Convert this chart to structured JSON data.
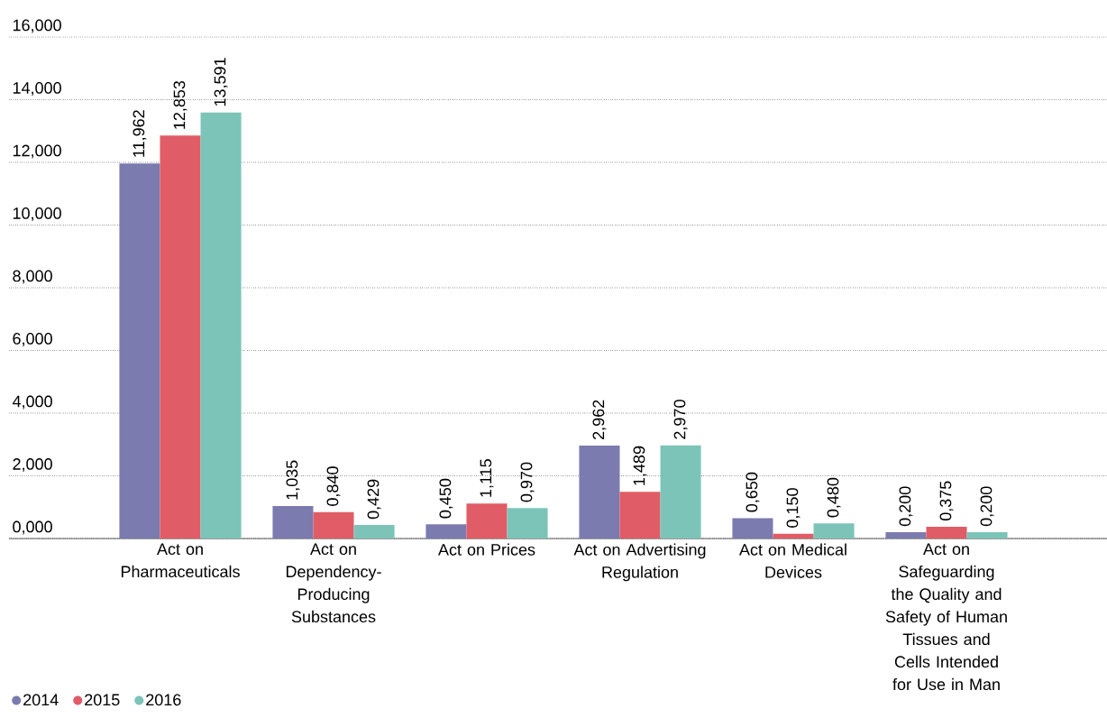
{
  "chart_data": {
    "type": "bar",
    "categories": [
      "Act on Pharmaceuticals",
      "Act on Dependency-Producing Substances",
      "Act on Prices",
      "Act on Advertising Regulation",
      "Act on Medical Devices",
      "Act on Safeguarding the Quality and Safety of Human Tissues and Cells Intended for Use in Man"
    ],
    "series": [
      {
        "name": "2014",
        "color": "#7b7bb0",
        "values": [
          11.962,
          1.035,
          0.45,
          2.962,
          0.65,
          0.2
        ],
        "value_labels": [
          "11,962",
          "1,035",
          "0,450",
          "2,962",
          "0,650",
          "0,200"
        ]
      },
      {
        "name": "2015",
        "color": "#e05c66",
        "values": [
          12.853,
          0.84,
          1.115,
          1.489,
          0.15,
          0.375
        ],
        "value_labels": [
          "12,853",
          "0,840",
          "1,115",
          "1,489",
          "0,150",
          "0,375"
        ]
      },
      {
        "name": "2016",
        "color": "#7cc4b8",
        "values": [
          13.591,
          0.429,
          0.97,
          2.97,
          0.48,
          0.2
        ],
        "value_labels": [
          "13,591",
          "0,429",
          "0,970",
          "2,970",
          "0,480",
          "0,200"
        ]
      }
    ],
    "ylim": [
      0,
      16
    ],
    "yticks": [
      {
        "value": 0,
        "label": "0,000"
      },
      {
        "value": 2,
        "label": "2,000"
      },
      {
        "value": 4,
        "label": "4,000"
      },
      {
        "value": 6,
        "label": "6,000"
      },
      {
        "value": 8,
        "label": "8,000"
      },
      {
        "value": 10,
        "label": "10,000"
      },
      {
        "value": 12,
        "label": "12,000"
      },
      {
        "value": 14,
        "label": "14,000"
      },
      {
        "value": 16,
        "label": "16,000"
      }
    ],
    "grid": "y",
    "legend": "bottom left"
  }
}
